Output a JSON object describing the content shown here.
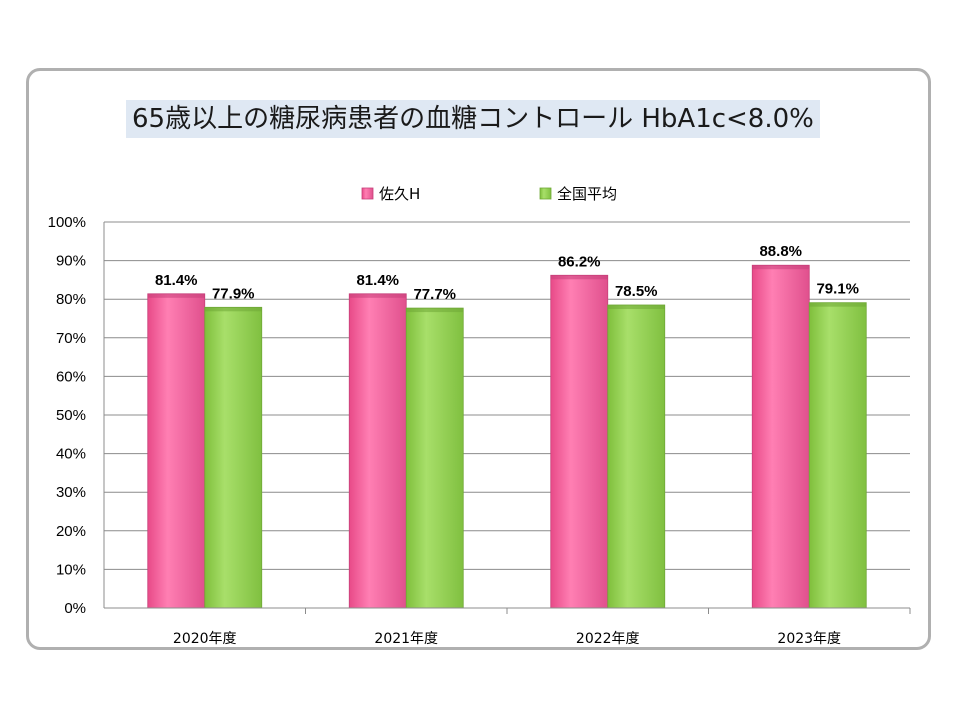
{
  "chart_data": {
    "type": "bar",
    "title": "65歳以上の糖尿病患者の血糖コントロール HbA1c<8.0%",
    "categories": [
      "2020年度",
      "2021年度",
      "2022年度",
      "2023年度"
    ],
    "series": [
      {
        "name": "佐久H",
        "values": [
          81.4,
          81.4,
          86.2,
          88.8
        ],
        "labels": [
          "81.4%",
          "81.4%",
          "86.2%",
          "88.8%"
        ],
        "color": "#f0609a"
      },
      {
        "name": "全国平均",
        "values": [
          77.9,
          77.7,
          78.5,
          79.1
        ],
        "labels": [
          "77.9%",
          "77.7%",
          "78.5%",
          "79.1%"
        ],
        "color": "#92d050"
      }
    ],
    "yticks": [
      "0%",
      "10%",
      "20%",
      "30%",
      "40%",
      "50%",
      "60%",
      "70%",
      "80%",
      "90%",
      "100%"
    ],
    "ylim": [
      0,
      100
    ],
    "grid": true,
    "legend": "top-center"
  }
}
